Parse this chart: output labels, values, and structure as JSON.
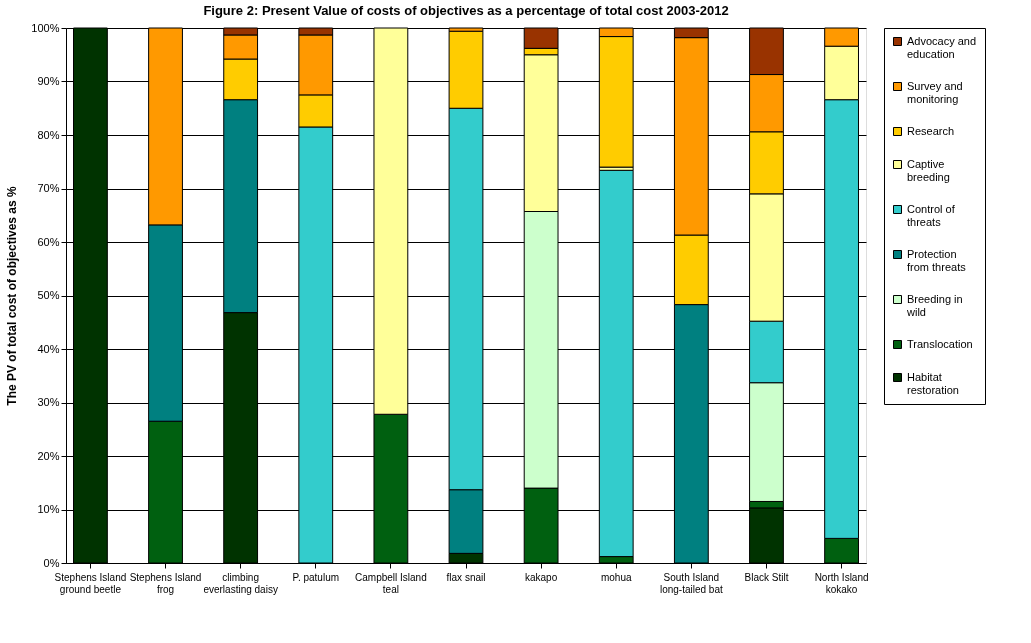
{
  "chart_data": {
    "type": "bar",
    "stacked": true,
    "title": "Figure 2: Present Value of costs of objectives as a percentage of total cost 2003-2012",
    "ylabel": "The PV of total cost of objectives as %",
    "categories": [
      "Stephens Island\nground beetle",
      "Stephens Island\nfrog",
      "climbing\neverlasting daisy",
      "P. patulum",
      "Campbell Island\nteal",
      "flax snail",
      "kakapo",
      "mohua",
      "South Island\nlong-tailed bat",
      "Black Stilt",
      "North Island\nkokako"
    ],
    "series": [
      {
        "name": "Habitat restoration",
        "color": "#003300",
        "values": [
          100,
          null,
          46.8,
          null,
          null,
          1.8,
          null,
          null,
          null,
          10.3,
          null
        ]
      },
      {
        "name": "Translocation",
        "color": "#006010",
        "values": [
          null,
          26.5,
          null,
          null,
          27.8,
          null,
          14,
          1.2,
          null,
          1.2,
          4.6
        ]
      },
      {
        "name": "Breeding in wild",
        "color": "#ccffcc",
        "values": [
          null,
          null,
          null,
          null,
          null,
          null,
          51.7,
          null,
          null,
          22.2,
          null
        ]
      },
      {
        "name": "Protection from threats",
        "color": "#008080",
        "values": [
          null,
          36.7,
          39.8,
          null,
          null,
          11.9,
          null,
          null,
          48.3,
          null,
          null
        ]
      },
      {
        "name": "Control of threats",
        "color": "#33cccc",
        "values": [
          null,
          null,
          null,
          81.5,
          null,
          71.3,
          null,
          72.2,
          null,
          11.5,
          82
        ]
      },
      {
        "name": "Captive breeding",
        "color": "#ffff99",
        "values": [
          null,
          null,
          null,
          null,
          72.2,
          null,
          29.3,
          0.6,
          null,
          23.8,
          10
        ]
      },
      {
        "name": "Research",
        "color": "#ffcc00",
        "values": [
          null,
          null,
          7.6,
          6,
          null,
          14.4,
          1.2,
          24.4,
          13,
          11.6,
          null
        ]
      },
      {
        "name": "Survey and monitoring",
        "color": "#ff9900",
        "values": [
          null,
          36.8,
          4.5,
          11.2,
          null,
          0.6,
          null,
          1.6,
          36.9,
          10.7,
          3.4
        ]
      },
      {
        "name": "Advocacy and education",
        "color": "#993300",
        "values": [
          null,
          null,
          1.3,
          1.3,
          null,
          null,
          3.8,
          null,
          1.8,
          8.7,
          null
        ]
      }
    ],
    "ylim": [
      0,
      100
    ],
    "yticks": [
      {
        "value": 0,
        "label": "0%"
      },
      {
        "value": 10,
        "label": "10%"
      },
      {
        "value": 20,
        "label": "20%"
      },
      {
        "value": 30,
        "label": "30%"
      },
      {
        "value": 40,
        "label": "40%"
      },
      {
        "value": 50,
        "label": "50%"
      },
      {
        "value": 60,
        "label": "60%"
      },
      {
        "value": 70,
        "label": "70%"
      },
      {
        "value": 80,
        "label": "80%"
      },
      {
        "value": 90,
        "label": "90%"
      },
      {
        "value": 100,
        "label": "100%"
      }
    ],
    "grid": "y",
    "legend": "right"
  }
}
